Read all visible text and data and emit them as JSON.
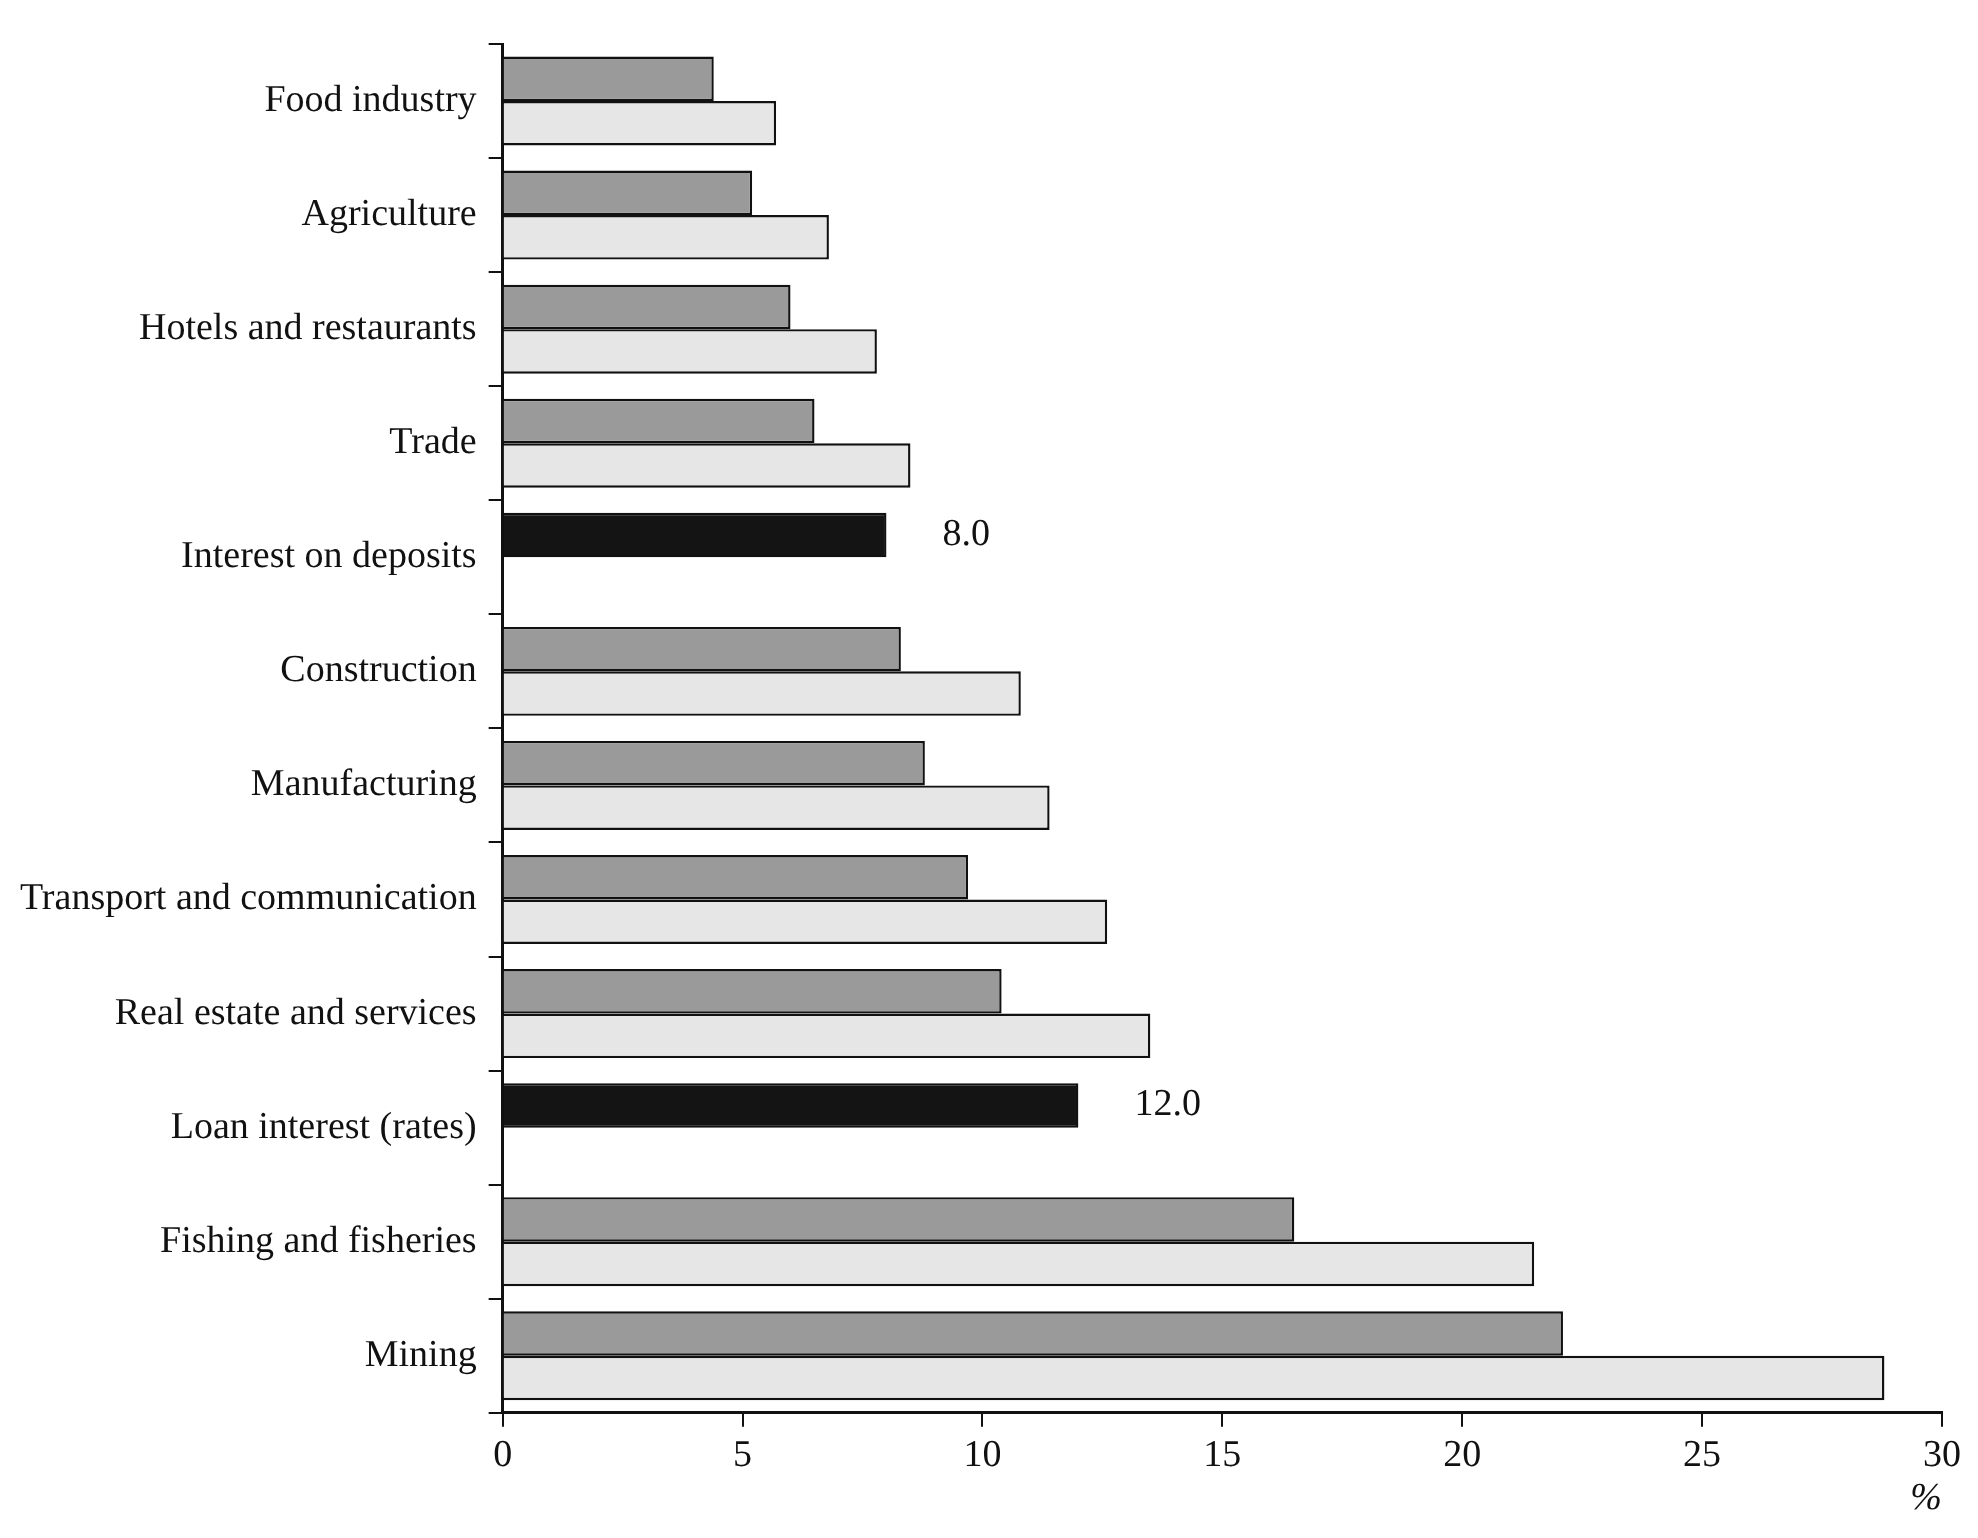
{
  "chart_data": {
    "type": "bar",
    "orientation": "horizontal",
    "xlabel": "%",
    "categories": [
      "Food industry",
      "Agriculture",
      "Hotels and restaurants",
      "Trade",
      "Interest on deposits",
      "Construction",
      "Manufacturing",
      "Transport and communication",
      "Real estate and services",
      "Loan interest (rates)",
      "Fishing and fisheries",
      "Mining"
    ],
    "series": [
      {
        "colors": [
          "#9a9a9a",
          "#9a9a9a",
          "#9a9a9a",
          "#9a9a9a",
          "#141414",
          "#9a9a9a",
          "#9a9a9a",
          "#9a9a9a",
          "#9a9a9a",
          "#141414",
          "#9a9a9a",
          "#9a9a9a"
        ],
        "values": [
          4.4,
          5.2,
          6.0,
          6.5,
          8.0,
          8.3,
          8.8,
          9.7,
          10.4,
          12.0,
          16.5,
          22.1
        ],
        "value_labels": [
          null,
          null,
          null,
          null,
          "8.0",
          null,
          null,
          null,
          null,
          "12.0",
          null,
          null
        ]
      },
      {
        "color": "#e6e6e6",
        "values": [
          5.7,
          6.8,
          7.8,
          8.5,
          null,
          10.8,
          11.4,
          12.6,
          13.5,
          null,
          21.5,
          28.8
        ]
      }
    ],
    "xlim": [
      0,
      30
    ],
    "xticks": [
      0,
      5,
      10,
      15,
      20,
      25,
      30
    ],
    "grid": false,
    "legend": false
  }
}
